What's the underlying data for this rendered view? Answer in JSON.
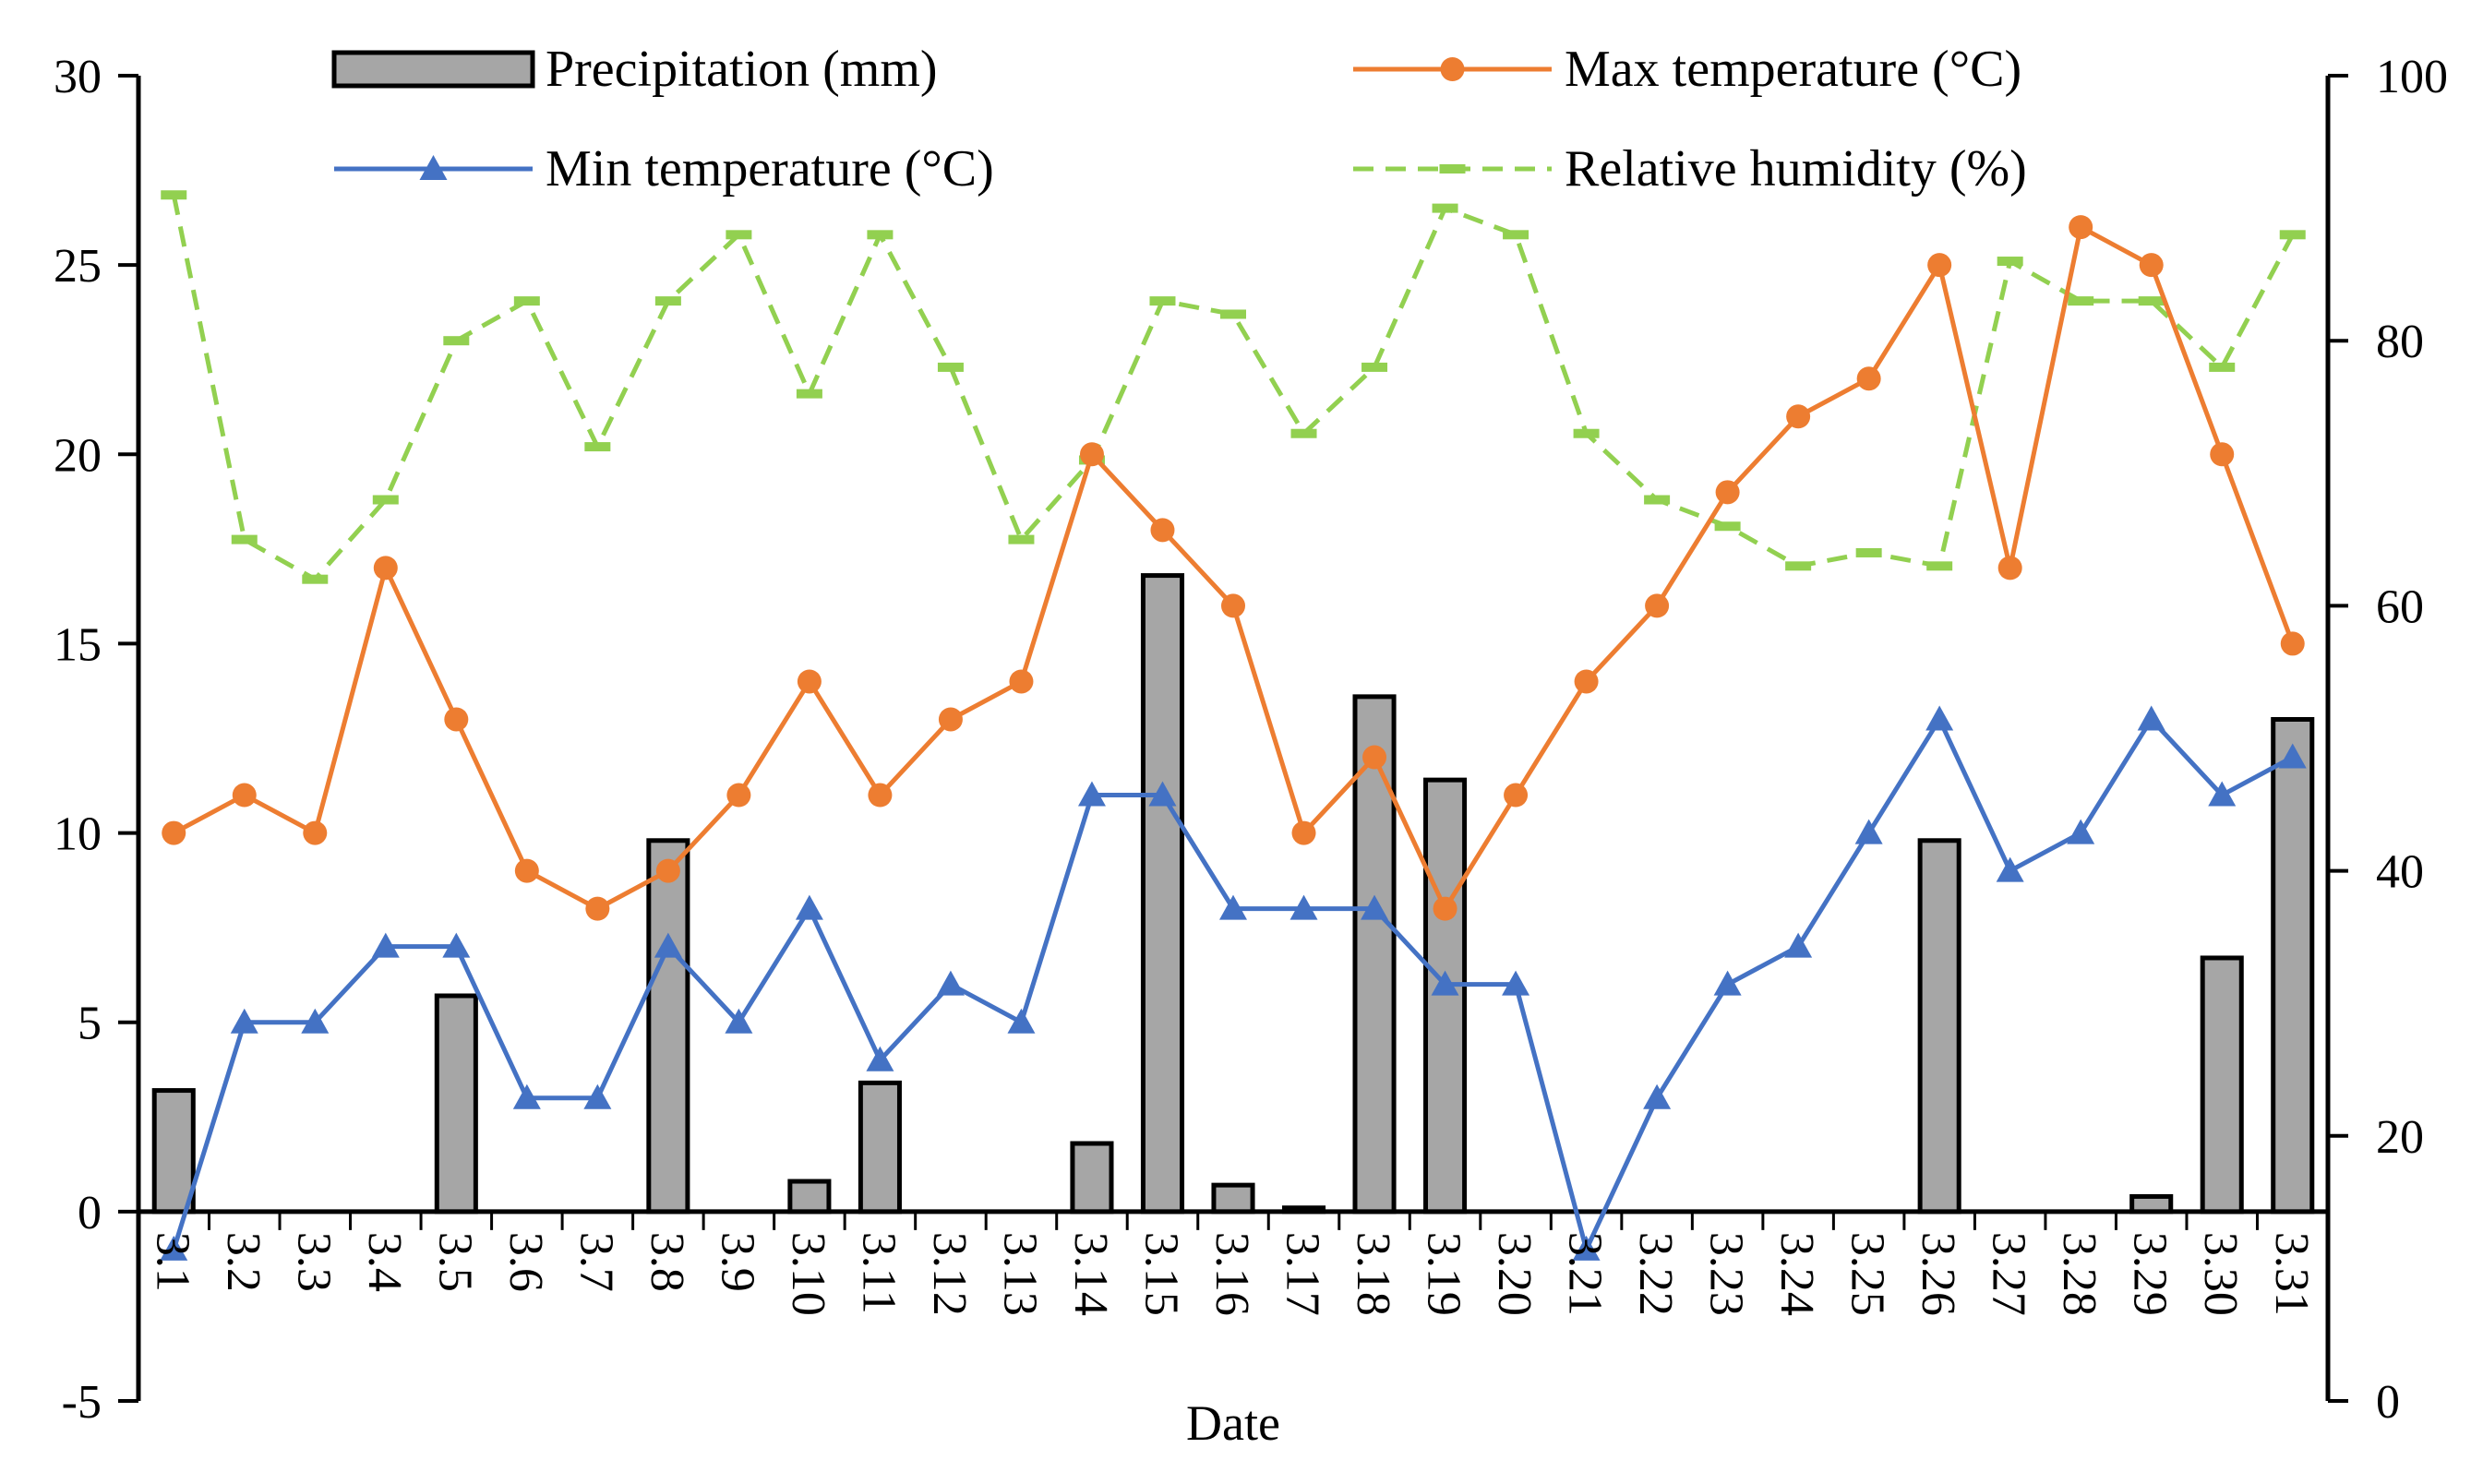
{
  "chart_data": {
    "type": "bar+line",
    "title": "",
    "xlabel": "Date",
    "ylabel_left": "",
    "ylabel_right": "",
    "categories": [
      "3.1",
      "3.2",
      "3.3",
      "3.4",
      "3.5",
      "3.6",
      "3.7",
      "3.8",
      "3.9",
      "3.10",
      "3.11",
      "3.12",
      "3.13",
      "3.14",
      "3.15",
      "3.16",
      "3.17",
      "3.18",
      "3.19",
      "3.20",
      "3.21",
      "3.22",
      "3.23",
      "3.24",
      "3.25",
      "3.26",
      "3.27",
      "3.28",
      "3.29",
      "3.30",
      "3.31"
    ],
    "y_left": {
      "min": -5,
      "max": 30,
      "ticks": [
        -5,
        0,
        5,
        10,
        15,
        20,
        25,
        30
      ]
    },
    "y_right": {
      "min": 0,
      "max": 100,
      "ticks": [
        0,
        20,
        40,
        60,
        80,
        100
      ]
    },
    "series": [
      {
        "name": "Precipitation (mm)",
        "type": "bar",
        "axis": "left",
        "color": "#a6a6a6",
        "values": [
          3.2,
          0,
          0,
          0,
          5.7,
          0,
          0,
          9.8,
          0,
          0.8,
          3.4,
          0,
          0,
          1.8,
          16.8,
          0.7,
          0.1,
          13.6,
          11.4,
          0,
          0,
          0,
          0,
          0,
          0,
          9.8,
          0,
          0,
          0.4,
          6.7,
          13.0
        ]
      },
      {
        "name": "Max temperature (°C)",
        "type": "line",
        "axis": "left",
        "color": "#ed7d31",
        "marker": "circle",
        "values": [
          10,
          11,
          10,
          17,
          13,
          9,
          8,
          9,
          11,
          14,
          11,
          13,
          14,
          20,
          18,
          16,
          10,
          12,
          8,
          11,
          14,
          16,
          19,
          21,
          22,
          25,
          17,
          26,
          25,
          20,
          15
        ]
      },
      {
        "name": "Min temperature (°C)",
        "type": "line",
        "axis": "left",
        "color": "#4472c4",
        "marker": "triangle",
        "values": [
          -1,
          5,
          5,
          7,
          7,
          3,
          3,
          7,
          5,
          8,
          4,
          6,
          5,
          11,
          11,
          8,
          8,
          8,
          6,
          6,
          -1,
          3,
          6,
          7,
          10,
          13,
          9,
          10,
          13,
          11,
          12
        ]
      },
      {
        "name": "Relative humidity (%)",
        "type": "line",
        "axis": "right",
        "color": "#92d050",
        "marker": "dash",
        "dashed": true,
        "values": [
          91,
          65,
          62,
          68,
          80,
          83,
          72,
          83,
          88,
          76,
          88,
          78,
          65,
          71,
          83,
          82,
          73,
          78,
          90,
          88,
          73,
          68,
          66,
          63,
          64,
          63,
          86,
          83,
          83,
          78,
          88
        ]
      }
    ],
    "legend": [
      {
        "label": "Precipitation (mm)",
        "series": 0
      },
      {
        "label": "Max temperature (°C)",
        "series": 1
      },
      {
        "label": "Min  temperature (°C)",
        "series": 2
      },
      {
        "label": "Relative humidity (%)",
        "series": 3
      }
    ]
  }
}
